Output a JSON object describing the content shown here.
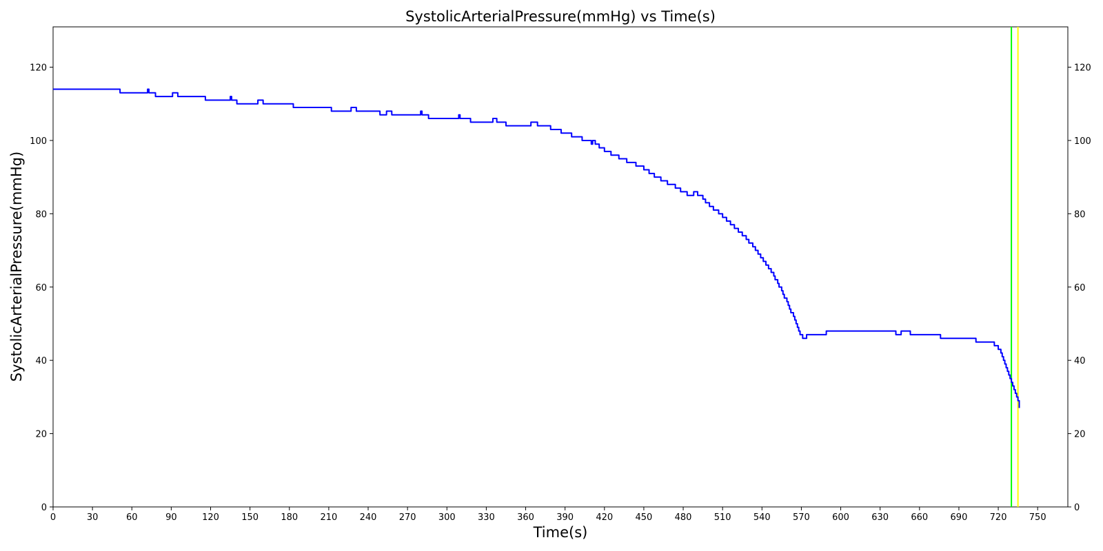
{
  "chart_data": {
    "type": "line",
    "title": "SystolicArterialPressure(mmHg) vs Time(s)",
    "xlabel": "Time(s)",
    "ylabel": "SystolicArterialPressure(mmHg)",
    "xlim": [
      0,
      773
    ],
    "ylim": [
      0,
      131
    ],
    "xticks": [
      0,
      30,
      60,
      90,
      120,
      150,
      180,
      210,
      240,
      270,
      300,
      330,
      360,
      390,
      420,
      450,
      480,
      510,
      540,
      570,
      600,
      630,
      660,
      690,
      720,
      750
    ],
    "yticks": [
      0,
      20,
      40,
      60,
      80,
      100,
      120
    ],
    "right_axis_ticks": true,
    "grid": false,
    "legend": "none",
    "series": [
      {
        "color": "#0000ff",
        "step": true,
        "x": [
          0,
          51,
          71,
          72,
          73,
          77,
          78,
          90,
          91,
          94,
          95,
          116,
          134,
          135,
          136,
          139,
          140,
          155,
          156,
          159,
          160,
          182,
          183,
          211,
          212,
          226,
          227,
          230,
          231,
          248,
          249,
          253,
          254,
          257,
          258,
          279,
          280,
          281,
          282,
          285,
          286,
          308,
          309,
          310,
          317,
          318,
          334,
          335,
          337,
          338,
          344,
          345,
          363,
          364,
          368,
          369,
          378,
          379,
          386,
          387,
          394,
          395,
          402,
          403,
          409,
          410,
          411,
          412,
          413,
          416,
          420,
          425,
          431,
          437,
          444,
          450,
          454,
          458,
          463,
          468,
          474,
          478,
          483,
          488,
          491,
          494,
          495,
          497,
          500,
          503,
          507,
          510,
          513,
          516,
          519,
          522,
          525,
          528,
          530,
          533,
          535,
          537,
          539,
          541,
          543,
          545,
          547,
          549,
          550,
          552,
          553,
          555,
          556,
          557,
          559,
          560,
          561,
          562,
          564,
          565,
          566,
          567,
          568,
          569,
          570,
          571,
          572,
          573,
          574,
          575,
          576,
          577,
          578,
          579,
          580,
          588,
          589,
          641,
          642,
          645,
          646,
          652,
          653,
          675,
          676,
          702,
          703,
          716,
          717,
          719,
          720,
          721,
          722,
          723,
          724,
          725,
          726,
          727,
          728,
          729,
          730,
          731,
          732,
          733,
          734,
          735,
          736
        ],
        "values": [
          114,
          113,
          113,
          114,
          113,
          113,
          112,
          112,
          113,
          113,
          112,
          111,
          111,
          112,
          111,
          111,
          110,
          110,
          111,
          111,
          110,
          110,
          109,
          109,
          108,
          108,
          109,
          109,
          108,
          108,
          107,
          107,
          108,
          108,
          107,
          107,
          108,
          107,
          107,
          107,
          106,
          106,
          107,
          106,
          106,
          105,
          105,
          106,
          106,
          105,
          105,
          104,
          104,
          105,
          105,
          104,
          104,
          103,
          103,
          102,
          102,
          101,
          101,
          100,
          100,
          99,
          100,
          100,
          99,
          98,
          97,
          96,
          95,
          94,
          93,
          92,
          91,
          90,
          89,
          88,
          87,
          86,
          85,
          86,
          85,
          85,
          84,
          83,
          82,
          81,
          80,
          79,
          78,
          77,
          76,
          75,
          74,
          73,
          72,
          71,
          70,
          69,
          68,
          67,
          66,
          65,
          64,
          63,
          62,
          61,
          60,
          59,
          58,
          57,
          56,
          55,
          54,
          53,
          52,
          51,
          50,
          49,
          48,
          47,
          47,
          46,
          46,
          46,
          47,
          47,
          47,
          47,
          47,
          47,
          47,
          47,
          48,
          48,
          47,
          47,
          48,
          48,
          47,
          47,
          46,
          46,
          45,
          45,
          44,
          44,
          43,
          43,
          42,
          41,
          40,
          39,
          38,
          37,
          36,
          35,
          34,
          33,
          32,
          31,
          30,
          29,
          27
        ]
      }
    ],
    "vertical_lines": [
      {
        "x": 730,
        "color": "#00ff00"
      },
      {
        "x": 735,
        "color": "#ffff00"
      }
    ]
  }
}
